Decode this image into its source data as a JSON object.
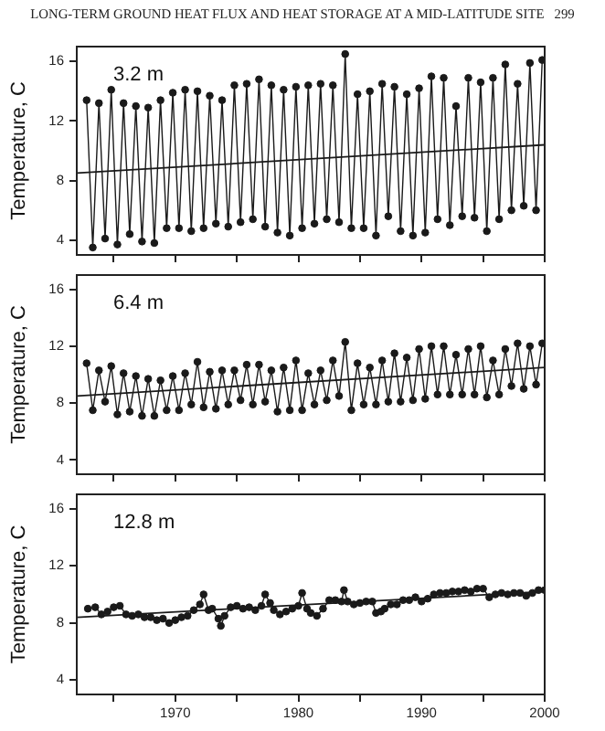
{
  "chart_data": [
    {
      "type": "line",
      "title": "LONG-TERM GROUND HEAT FLUX AND HEAT STORAGE AT A MID-LATITUDE SITE   299",
      "ylabel": "Temperature, C",
      "annotations": [
        "3.2 m"
      ],
      "xlim": [
        1962,
        2000
      ],
      "xticks": [
        {
          "value": 1965,
          "label": null
        },
        1970,
        {
          "value": 1975,
          "label": null
        },
        1980,
        {
          "value": 1985,
          "label": null
        },
        1990,
        {
          "value": 1995,
          "label": null
        },
        2000
      ],
      "ylim": [
        3,
        17
      ],
      "yticks": [
        4,
        8,
        12,
        16
      ],
      "tick_labels": "y",
      "grid": false,
      "legend": false,
      "line_style": "solid",
      "series": [
        {
          "color": "#1a1a1a",
          "marker": "circle",
          "x": [
            1962.8,
            1963.3,
            1963.8,
            1964.3,
            1964.8,
            1965.3,
            1965.8,
            1966.3,
            1966.8,
            1967.3,
            1967.8,
            1968.3,
            1968.8,
            1969.3,
            1969.8,
            1970.3,
            1970.8,
            1971.3,
            1971.8,
            1972.3,
            1972.8,
            1973.3,
            1973.8,
            1974.3,
            1974.8,
            1975.3,
            1975.8,
            1976.3,
            1976.8,
            1977.3,
            1977.8,
            1978.3,
            1978.8,
            1979.3,
            1979.8,
            1980.3,
            1980.8,
            1981.3,
            1981.8,
            1982.3,
            1982.8,
            1983.3,
            1983.8,
            1984.3,
            1984.8,
            1985.3,
            1985.8,
            1986.3,
            1986.8,
            1987.3,
            1987.8,
            1988.3,
            1988.8,
            1989.3,
            1989.8,
            1990.3,
            1990.8,
            1991.3,
            1991.8,
            1992.3,
            1992.8,
            1993.3,
            1993.8,
            1994.3,
            1994.8,
            1995.3,
            1995.8,
            1996.3,
            1996.8,
            1997.3,
            1997.8,
            1998.3,
            1998.8,
            1999.3,
            1999.8
          ],
          "values": [
            13.4,
            3.5,
            13.2,
            4.1,
            14.1,
            3.7,
            13.2,
            4.4,
            13.0,
            3.9,
            12.9,
            3.8,
            13.4,
            4.8,
            13.9,
            4.8,
            14.1,
            4.6,
            14.0,
            4.8,
            13.7,
            5.1,
            13.4,
            4.9,
            14.4,
            5.2,
            14.5,
            5.4,
            14.8,
            4.9,
            14.4,
            4.5,
            14.1,
            4.3,
            14.3,
            4.8,
            14.4,
            5.1,
            14.5,
            5.4,
            14.4,
            5.2,
            16.5,
            4.8,
            13.8,
            4.8,
            14.0,
            4.3,
            14.5,
            5.6,
            14.3,
            4.6,
            13.8,
            4.3,
            14.2,
            4.5,
            15.0,
            5.4,
            14.9,
            5.0,
            13.0,
            5.6,
            14.9,
            5.5,
            14.6,
            4.6,
            14.9,
            5.4,
            15.8,
            6.0,
            14.5,
            6.3,
            15.9,
            6.0,
            16.1
          ]
        },
        {
          "color": "#1a1a1a",
          "marker": "none",
          "x": [
            1962,
            2000
          ],
          "values": [
            8.5,
            10.4
          ]
        }
      ]
    },
    {
      "type": "line",
      "ylabel": "Temperature, C",
      "annotations": [
        "6.4 m"
      ],
      "xlim": [
        1962,
        2000
      ],
      "xticks": [
        {
          "value": 1965,
          "label": null
        },
        1970,
        {
          "value": 1975,
          "label": null
        },
        1980,
        {
          "value": 1985,
          "label": null
        },
        1990,
        {
          "value": 1995,
          "label": null
        },
        2000
      ],
      "ylim": [
        3,
        17
      ],
      "yticks": [
        4,
        8,
        12,
        16
      ],
      "tick_labels": "y",
      "grid": false,
      "legend": false,
      "line_style": "solid",
      "series": [
        {
          "color": "#1a1a1a",
          "marker": "circle",
          "x": [
            1962.8,
            1963.3,
            1963.8,
            1964.3,
            1964.8,
            1965.3,
            1965.8,
            1966.3,
            1966.8,
            1967.3,
            1967.8,
            1968.3,
            1968.8,
            1969.3,
            1969.8,
            1970.3,
            1970.8,
            1971.3,
            1971.8,
            1972.3,
            1972.8,
            1973.3,
            1973.8,
            1974.3,
            1974.8,
            1975.3,
            1975.8,
            1976.3,
            1976.8,
            1977.3,
            1977.8,
            1978.3,
            1978.8,
            1979.3,
            1979.8,
            1980.3,
            1980.8,
            1981.3,
            1981.8,
            1982.3,
            1982.8,
            1983.3,
            1983.8,
            1984.3,
            1984.8,
            1985.3,
            1985.8,
            1986.3,
            1986.8,
            1987.3,
            1987.8,
            1988.3,
            1988.8,
            1989.3,
            1989.8,
            1990.3,
            1990.8,
            1991.3,
            1991.8,
            1992.3,
            1992.8,
            1993.3,
            1993.8,
            1994.3,
            1994.8,
            1995.3,
            1995.8,
            1996.3,
            1996.8,
            1997.3,
            1997.8,
            1998.3,
            1998.8,
            1999.3,
            1999.8
          ],
          "values": [
            10.8,
            7.5,
            10.3,
            8.1,
            10.6,
            7.2,
            10.1,
            7.4,
            9.9,
            7.1,
            9.7,
            7.1,
            9.6,
            7.5,
            9.9,
            7.5,
            10.1,
            7.9,
            10.9,
            7.7,
            10.2,
            7.6,
            10.3,
            7.9,
            10.3,
            8.2,
            10.7,
            7.9,
            10.7,
            8.1,
            10.3,
            7.4,
            10.5,
            7.5,
            11.0,
            7.5,
            10.1,
            7.9,
            10.3,
            8.2,
            11.0,
            8.5,
            12.3,
            7.5,
            10.8,
            7.9,
            10.5,
            7.9,
            11.0,
            8.1,
            11.5,
            8.1,
            11.2,
            8.2,
            11.8,
            8.3,
            12.0,
            8.6,
            12.0,
            8.6,
            11.4,
            8.6,
            11.8,
            8.6,
            12.0,
            8.4,
            11.0,
            8.6,
            11.8,
            9.2,
            12.2,
            9.0,
            12.0,
            9.3,
            12.2
          ]
        },
        {
          "color": "#1a1a1a",
          "marker": "none",
          "x": [
            1962,
            2000
          ],
          "values": [
            8.5,
            10.5
          ]
        }
      ]
    },
    {
      "type": "line",
      "ylabel": "Temperature, C",
      "annotations": [
        "12.8 m"
      ],
      "xlim": [
        1962,
        2000
      ],
      "xticks": [
        {
          "value": 1965,
          "label": null
        },
        1970,
        {
          "value": 1975,
          "label": null
        },
        1980,
        {
          "value": 1985,
          "label": null
        },
        1990,
        {
          "value": 1995,
          "label": null
        },
        2000
      ],
      "ylim": [
        3,
        17
      ],
      "yticks": [
        4,
        8,
        12,
        16
      ],
      "grid": false,
      "legend": false,
      "line_style": "solid",
      "series": [
        {
          "color": "#1a1a1a",
          "marker": "circle",
          "x": [
            1962.9,
            1963.5,
            1964,
            1964.5,
            1965,
            1965.5,
            1966,
            1966.5,
            1967,
            1967.5,
            1968,
            1968.5,
            1969,
            1969.5,
            1970,
            1970.5,
            1971,
            1971.5,
            1972,
            1972.3,
            1972.7,
            1973,
            1973.5,
            1973.7,
            1974,
            1974.5,
            1975,
            1975.5,
            1976,
            1976.5,
            1977,
            1977.3,
            1977.7,
            1978,
            1978.5,
            1979,
            1979.5,
            1980,
            1980.3,
            1980.7,
            1981,
            1981.5,
            1982,
            1982.5,
            1983,
            1983.5,
            1983.7,
            1984,
            1984.5,
            1985,
            1985.5,
            1986,
            1986.3,
            1986.7,
            1987,
            1987.5,
            1988,
            1988.5,
            1989,
            1989.5,
            1990,
            1990.5,
            1991,
            1991.5,
            1992,
            1992.5,
            1993,
            1993.5,
            1994,
            1994.5,
            1995,
            1995.5,
            1996,
            1996.5,
            1997,
            1997.5,
            1998,
            1998.5,
            1999,
            1999.5,
            2000
          ],
          "values": [
            9.0,
            9.1,
            8.6,
            8.8,
            9.1,
            9.2,
            8.6,
            8.5,
            8.6,
            8.4,
            8.4,
            8.2,
            8.3,
            8.0,
            8.2,
            8.4,
            8.5,
            8.9,
            9.3,
            10.0,
            8.9,
            9.0,
            8.3,
            7.8,
            8.5,
            9.1,
            9.2,
            9.0,
            9.1,
            8.9,
            9.2,
            10.0,
            9.4,
            8.9,
            8.6,
            8.8,
            9.0,
            9.2,
            10.1,
            9.0,
            8.7,
            8.5,
            9.0,
            9.6,
            9.6,
            9.5,
            10.3,
            9.5,
            9.3,
            9.4,
            9.5,
            9.5,
            8.7,
            8.8,
            9.0,
            9.3,
            9.3,
            9.6,
            9.6,
            9.8,
            9.5,
            9.7,
            10.0,
            10.1,
            10.1,
            10.2,
            10.2,
            10.3,
            10.2,
            10.4,
            10.4,
            9.8,
            10.0,
            10.1,
            10.0,
            10.1,
            10.1,
            9.9,
            10.1,
            10.3,
            10.3
          ]
        },
        {
          "color": "#1a1a1a",
          "marker": "none",
          "x": [
            1962,
            2000
          ],
          "values": [
            8.4,
            10.2
          ]
        }
      ]
    }
  ]
}
